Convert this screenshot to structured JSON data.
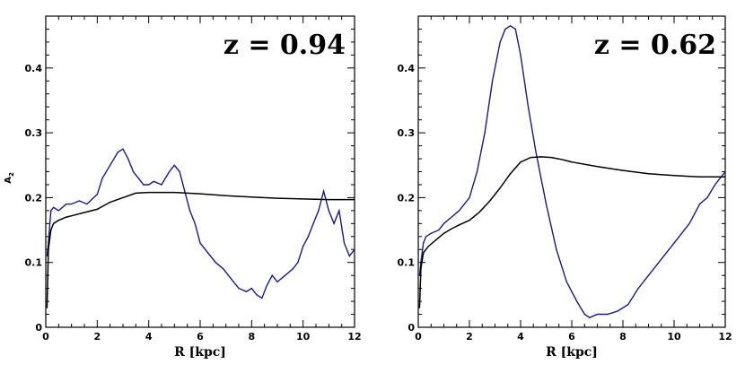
{
  "chart_data": [
    {
      "type": "line",
      "annotation": "z  =  0.94",
      "xlabel": "R [kpc]",
      "ylabel": "A",
      "ylabel_sub": "2",
      "xlim": [
        0,
        12
      ],
      "ylim": [
        0,
        0.48
      ],
      "xticks": [
        0,
        2,
        4,
        6,
        8,
        10,
        12
      ],
      "xtick_labels": [
        "0",
        "2",
        "4",
        "6",
        "8",
        "10",
        "12"
      ],
      "yticks": [
        0,
        0.1,
        0.2,
        0.3,
        0.4
      ],
      "ytick_labels": [
        "0",
        "0.1",
        "0.2",
        "0.3",
        "0.4"
      ],
      "series": [
        {
          "name": "blue",
          "color": "#1a1a7a",
          "x": [
            0.05,
            0.1,
            0.2,
            0.3,
            0.5,
            0.8,
            1.0,
            1.3,
            1.6,
            2.0,
            2.2,
            2.5,
            2.8,
            3.0,
            3.2,
            3.4,
            3.6,
            3.8,
            4.0,
            4.2,
            4.5,
            4.8,
            5.0,
            5.2,
            5.4,
            5.6,
            5.8,
            6.0,
            6.3,
            6.6,
            6.9,
            7.2,
            7.5,
            7.8,
            8.0,
            8.2,
            8.4,
            8.6,
            8.8,
            9.0,
            9.3,
            9.6,
            9.8,
            10.0,
            10.2,
            10.4,
            10.6,
            10.8,
            11.0,
            11.2,
            11.4,
            11.6,
            11.8,
            12.0
          ],
          "y": [
            0.11,
            0.13,
            0.18,
            0.185,
            0.18,
            0.19,
            0.19,
            0.195,
            0.19,
            0.205,
            0.23,
            0.25,
            0.27,
            0.275,
            0.26,
            0.24,
            0.23,
            0.22,
            0.22,
            0.225,
            0.22,
            0.24,
            0.25,
            0.24,
            0.21,
            0.18,
            0.16,
            0.13,
            0.115,
            0.1,
            0.09,
            0.075,
            0.06,
            0.055,
            0.06,
            0.05,
            0.045,
            0.065,
            0.08,
            0.07,
            0.08,
            0.09,
            0.1,
            0.125,
            0.14,
            0.16,
            0.18,
            0.21,
            0.18,
            0.16,
            0.18,
            0.13,
            0.11,
            0.12
          ]
        },
        {
          "name": "black",
          "color": "#000000",
          "x": [
            0.05,
            0.1,
            0.2,
            0.3,
            0.5,
            0.8,
            1.0,
            1.5,
            2.0,
            2.5,
            3.0,
            3.5,
            4.0,
            4.5,
            5.0,
            6.0,
            7.0,
            8.0,
            9.0,
            10.0,
            11.0,
            12.0
          ],
          "y": [
            0.03,
            0.12,
            0.15,
            0.16,
            0.165,
            0.17,
            0.172,
            0.177,
            0.182,
            0.193,
            0.2,
            0.207,
            0.208,
            0.208,
            0.208,
            0.206,
            0.203,
            0.201,
            0.199,
            0.198,
            0.197,
            0.197
          ]
        }
      ]
    },
    {
      "type": "line",
      "annotation": "z  =  0.62",
      "xlabel": "R [kpc]",
      "ylabel": "",
      "xlim": [
        0,
        12
      ],
      "ylim": [
        0,
        0.48
      ],
      "xticks": [
        0,
        2,
        4,
        6,
        8,
        10,
        12
      ],
      "xtick_labels": [
        "0",
        "2",
        "4",
        "6",
        "8",
        "10",
        "12"
      ],
      "yticks": [
        0,
        0.1,
        0.2,
        0.3,
        0.4
      ],
      "ytick_labels": [
        "0",
        "0.1",
        "0.2",
        "0.3",
        "0.4"
      ],
      "series": [
        {
          "name": "blue",
          "color": "#1a1a7a",
          "x": [
            0.05,
            0.1,
            0.2,
            0.3,
            0.5,
            0.8,
            1.0,
            1.3,
            1.6,
            2.0,
            2.3,
            2.6,
            2.9,
            3.2,
            3.4,
            3.6,
            3.8,
            4.0,
            4.3,
            4.6,
            5.0,
            5.4,
            5.8,
            6.2,
            6.5,
            6.7,
            7.0,
            7.4,
            7.8,
            8.2,
            8.6,
            9.0,
            9.4,
            9.8,
            10.2,
            10.6,
            11.0,
            11.3,
            11.6,
            11.8,
            12.0
          ],
          "y": [
            0.08,
            0.1,
            0.13,
            0.14,
            0.145,
            0.15,
            0.16,
            0.17,
            0.18,
            0.2,
            0.24,
            0.3,
            0.38,
            0.44,
            0.46,
            0.465,
            0.46,
            0.42,
            0.34,
            0.27,
            0.19,
            0.12,
            0.07,
            0.04,
            0.02,
            0.015,
            0.02,
            0.02,
            0.025,
            0.035,
            0.06,
            0.08,
            0.1,
            0.12,
            0.14,
            0.16,
            0.19,
            0.2,
            0.22,
            0.23,
            0.24
          ]
        },
        {
          "name": "black",
          "color": "#000000",
          "x": [
            0.05,
            0.1,
            0.2,
            0.4,
            0.7,
            1.0,
            1.3,
            1.6,
            2.0,
            2.4,
            2.8,
            3.2,
            3.6,
            4.0,
            4.4,
            4.8,
            5.2,
            5.6,
            6.0,
            7.0,
            8.0,
            9.0,
            10.0,
            11.0,
            12.0
          ],
          "y": [
            0.03,
            0.09,
            0.115,
            0.125,
            0.135,
            0.145,
            0.152,
            0.158,
            0.165,
            0.178,
            0.195,
            0.215,
            0.237,
            0.255,
            0.262,
            0.263,
            0.262,
            0.259,
            0.255,
            0.248,
            0.242,
            0.237,
            0.234,
            0.232,
            0.232
          ]
        }
      ]
    }
  ]
}
